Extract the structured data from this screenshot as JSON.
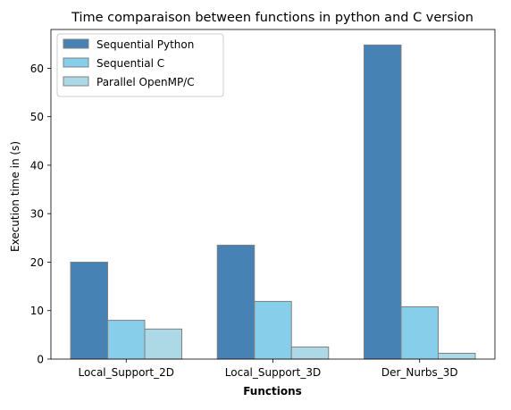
{
  "chart_data": {
    "type": "bar",
    "title": "Time comparaison between functions in python and C version",
    "xlabel": "Functions",
    "ylabel": "Execution time in (s)",
    "categories": [
      "Local_Support_2D",
      "Local_Support_3D",
      "Der_Nurbs_3D"
    ],
    "series": [
      {
        "name": "Sequential Python",
        "color": "#4682b4",
        "values": [
          20.0,
          23.5,
          64.8
        ]
      },
      {
        "name": "Sequential C",
        "color": "#87ceeb",
        "values": [
          8.0,
          11.9,
          10.8
        ]
      },
      {
        "name": "Parallel OpenMP/C",
        "color": "#add8e6",
        "values": [
          6.2,
          2.5,
          1.2
        ]
      }
    ],
    "ylim": [
      0,
      68
    ],
    "yticks": [
      0,
      10,
      20,
      30,
      40,
      50,
      60
    ],
    "legend": "top-left",
    "grid": false,
    "bar_edge_color": "#808080"
  }
}
